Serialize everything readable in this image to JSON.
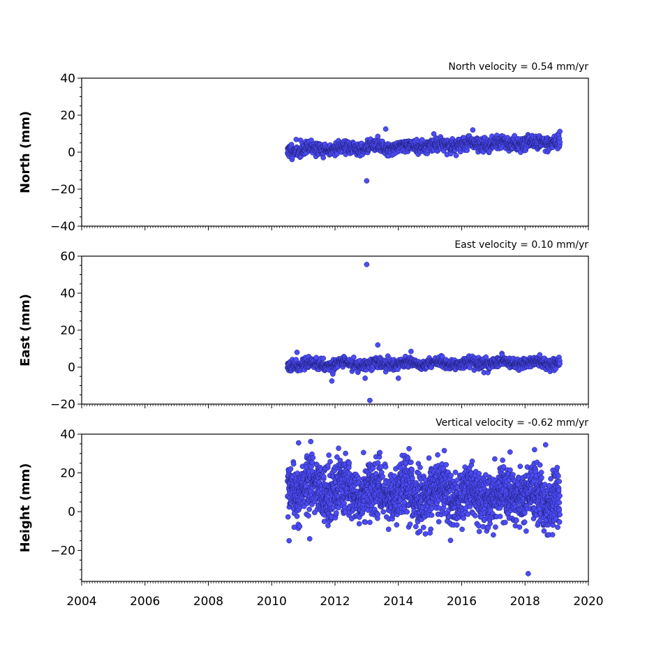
{
  "chart_data": [
    {
      "type": "scatter",
      "title": "",
      "xlabel": "",
      "ylabel": "North (mm)",
      "annotation": "North velocity = 0.54 mm/yr",
      "xlim": [
        2004,
        2020
      ],
      "ylim": [
        -40,
        40
      ],
      "yticks": [
        -40,
        -20,
        0,
        20,
        40
      ],
      "ytick_labels": [
        "−40",
        "−20",
        "0",
        "20",
        "40"
      ],
      "trend": {
        "start": 2010.5,
        "end": 2019.1,
        "y_at_start": 1.2,
        "rate": 0.54,
        "spread": 1.8
      },
      "outliers": [
        [
          2013.0,
          -15.5
        ],
        [
          2013.6,
          12.5
        ],
        [
          2016.35,
          12.0
        ],
        [
          2019.1,
          11.2
        ]
      ],
      "point_count": 1250,
      "seed": 11
    },
    {
      "type": "scatter",
      "title": "",
      "xlabel": "",
      "ylabel": "East (mm)",
      "annotation": "East velocity = 0.10 mm/yr",
      "xlim": [
        2004,
        2020
      ],
      "ylim": [
        -20,
        60
      ],
      "yticks": [
        -20,
        0,
        20,
        40,
        60
      ],
      "ytick_labels": [
        "−20",
        "0",
        "20",
        "40",
        "60"
      ],
      "trend": {
        "start": 2010.5,
        "end": 2019.1,
        "y_at_start": 1.5,
        "rate": 0.1,
        "spread": 1.4
      },
      "outliers": [
        [
          2013.0,
          55.5
        ],
        [
          2013.1,
          -18.0
        ],
        [
          2013.35,
          12.0
        ],
        [
          2010.8,
          8.0
        ],
        [
          2011.9,
          -7.5
        ],
        [
          2014.0,
          -6.0
        ],
        [
          2014.4,
          8.5
        ],
        [
          2012.95,
          -6.0
        ]
      ],
      "point_count": 1250,
      "seed": 23
    },
    {
      "type": "scatter",
      "title": "",
      "xlabel": "",
      "ylabel": "Height (mm)",
      "annotation": "Vertical velocity = -0.62 mm/yr",
      "xlim": [
        2004,
        2020
      ],
      "xticks": [
        2004,
        2006,
        2008,
        2010,
        2012,
        2014,
        2016,
        2018,
        2020
      ],
      "ylim": [
        -36,
        40
      ],
      "yticks": [
        -20,
        0,
        20,
        40
      ],
      "ytick_labels": [
        "−20",
        "0",
        "20",
        "40"
      ],
      "trend": {
        "start": 2010.5,
        "end": 2019.1,
        "y_at_start": 12.0,
        "rate": -0.62,
        "spread": 7.0
      },
      "outliers": [
        [
          2010.55,
          -15.0
        ],
        [
          2010.85,
          35.5
        ],
        [
          2011.2,
          -14.0
        ],
        [
          2015.45,
          31.5
        ],
        [
          2018.1,
          -32.0
        ],
        [
          2018.65,
          34.5
        ],
        [
          2018.3,
          32.0
        ],
        [
          2012.9,
          30.5
        ],
        [
          2017.0,
          -12.0
        ],
        [
          2015.0,
          -11.0
        ]
      ],
      "point_count": 2200,
      "seed": 37
    }
  ],
  "shared_x_ticks": [
    2004,
    2006,
    2008,
    2010,
    2012,
    2014,
    2016,
    2018,
    2020
  ],
  "colors": {
    "marker_fill": "#4c4cf5",
    "marker_edge": "#1a1a6e",
    "axes": "#000000"
  }
}
